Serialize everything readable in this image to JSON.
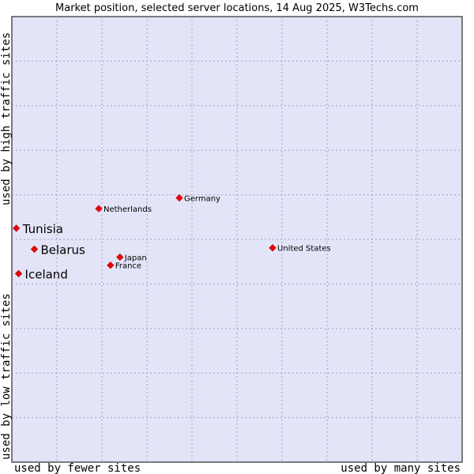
{
  "chart_data": {
    "type": "scatter",
    "title": "Market position, selected server locations, 14 Aug 2025, W3Techs.com",
    "xlabel_left": "used by fewer sites",
    "xlabel_right": "used by many sites",
    "ylabel_top": "used by high traffic sites",
    "ylabel_bottom": "used by low traffic sites",
    "grid": true,
    "xlim": [
      0,
      10
    ],
    "ylim": [
      0,
      10
    ],
    "background_color": "#e4e4f8",
    "point_color": "#ee0000",
    "points": [
      {
        "name": "Tunisia",
        "x": 0.1,
        "y": 5.25,
        "emphasis": true
      },
      {
        "name": "Belarus",
        "x": 0.5,
        "y": 4.78,
        "emphasis": true
      },
      {
        "name": "Iceland",
        "x": 0.15,
        "y": 4.23,
        "emphasis": true
      },
      {
        "name": "Netherlands",
        "x": 1.93,
        "y": 5.69,
        "emphasis": false
      },
      {
        "name": "Germany",
        "x": 3.72,
        "y": 5.93,
        "emphasis": false
      },
      {
        "name": "Japan",
        "x": 2.4,
        "y": 4.6,
        "emphasis": false
      },
      {
        "name": "France",
        "x": 2.19,
        "y": 4.42,
        "emphasis": false
      },
      {
        "name": "United States",
        "x": 5.79,
        "y": 4.81,
        "emphasis": false
      }
    ]
  }
}
